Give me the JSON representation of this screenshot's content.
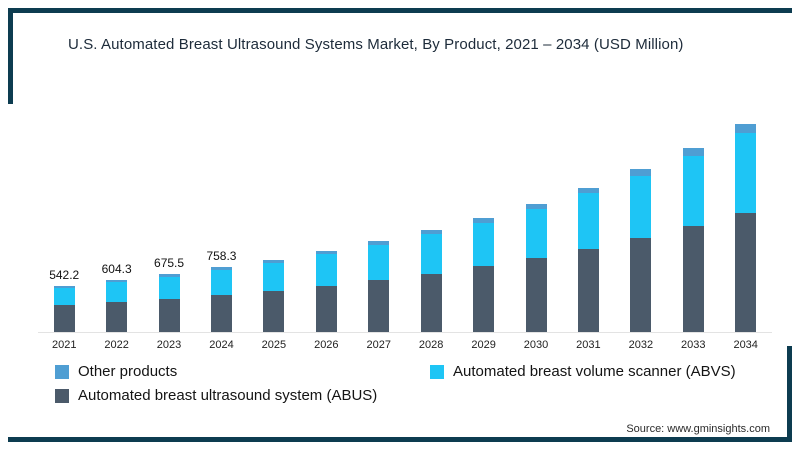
{
  "source": "Source: www.gminsights.com",
  "legend": {
    "items": [
      {
        "label": "Other products",
        "color": "#4f9ed3"
      },
      {
        "label": "Automated breast volume scanner (ABVS)",
        "color": "#1ec5f5"
      },
      {
        "label": "Automated breast ultrasound system (ABUS)",
        "color": "#4b5a6a"
      }
    ]
  },
  "chart_data": {
    "type": "bar",
    "stacked": true,
    "title": "U.S. Automated Breast Ultrasound Systems Market, By Product, 2021 – 2034 (USD Million)",
    "ylabel": "USD Million",
    "legend_position": "bottom",
    "grid": false,
    "categories": [
      "2021",
      "2022",
      "2023",
      "2024",
      "2025",
      "2026",
      "2027",
      "2028",
      "2029",
      "2030",
      "2031",
      "2032",
      "2033",
      "2034"
    ],
    "totals": [
      542.2,
      604.3,
      675.5,
      758.3,
      845.0,
      945.0,
      1060.0,
      1190.0,
      1335.0,
      1500.0,
      1690.0,
      1905.0,
      2150.0,
      2430.0
    ],
    "value_labels": [
      "542.2",
      "604.3",
      "675.5",
      "758.3",
      null,
      null,
      null,
      null,
      null,
      null,
      null,
      null,
      null,
      null
    ],
    "series": [
      {
        "name": "Automated breast ultrasound system (ABUS)",
        "short": "abus",
        "color": "#4b5a6a",
        "values": [
          311.8,
          347.5,
          388.4,
          436.0,
          485.9,
          543.4,
          609.5,
          684.3,
          767.6,
          862.5,
          971.8,
          1095.4,
          1236.3,
          1397.3
        ]
      },
      {
        "name": "Automated breast volume scanner (ABVS)",
        "short": "abvs",
        "color": "#1ec5f5",
        "values": [
          208.7,
          232.7,
          260.1,
          291.9,
          325.3,
          363.8,
          408.1,
          458.2,
          514.0,
          577.5,
          650.7,
          733.4,
          827.8,
          935.6
        ]
      },
      {
        "name": "Other products",
        "short": "other",
        "color": "#4f9ed3",
        "values": [
          21.7,
          24.1,
          27.0,
          30.4,
          33.8,
          37.8,
          42.4,
          47.5,
          53.4,
          60.0,
          67.5,
          76.2,
          85.9,
          97.1
        ]
      }
    ]
  }
}
